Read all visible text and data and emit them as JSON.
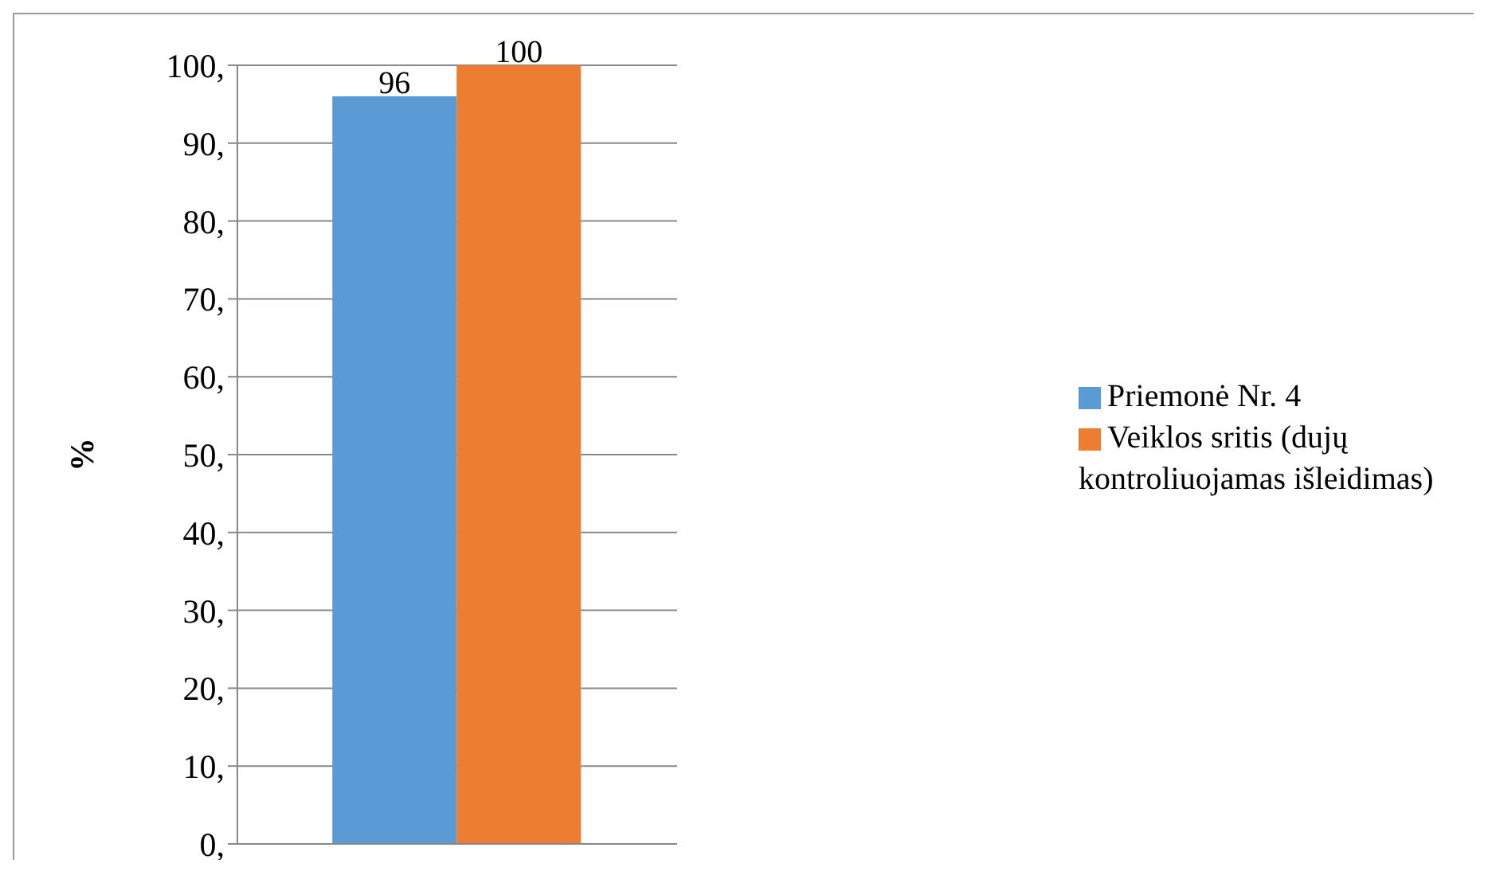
{
  "chart_data": {
    "type": "bar",
    "ylabel": "%",
    "categories": [
      null
    ],
    "series": [
      {
        "name": "Priemonė Nr. 4",
        "color": "#5b9bd5",
        "values": [
          96
        ]
      },
      {
        "name": "Veiklos sritis (dujų kontroliuojamas išleidimas)",
        "color": "#ed7d31",
        "values": [
          100
        ]
      }
    ],
    "ylim": [
      0,
      100
    ],
    "yticks": [
      {
        "value": 0,
        "label": "0,"
      },
      {
        "value": 10,
        "label": "10,"
      },
      {
        "value": 20,
        "label": "20,"
      },
      {
        "value": 30,
        "label": "30,"
      },
      {
        "value": 40,
        "label": "40,"
      },
      {
        "value": 50,
        "label": "50,"
      },
      {
        "value": 60,
        "label": "60,"
      },
      {
        "value": 70,
        "label": "70,"
      },
      {
        "value": 80,
        "label": "80,"
      },
      {
        "value": 90,
        "label": "90,"
      },
      {
        "value": 100,
        "label": "100,"
      }
    ],
    "grid": "y",
    "legend": "right",
    "data_labels": true
  }
}
